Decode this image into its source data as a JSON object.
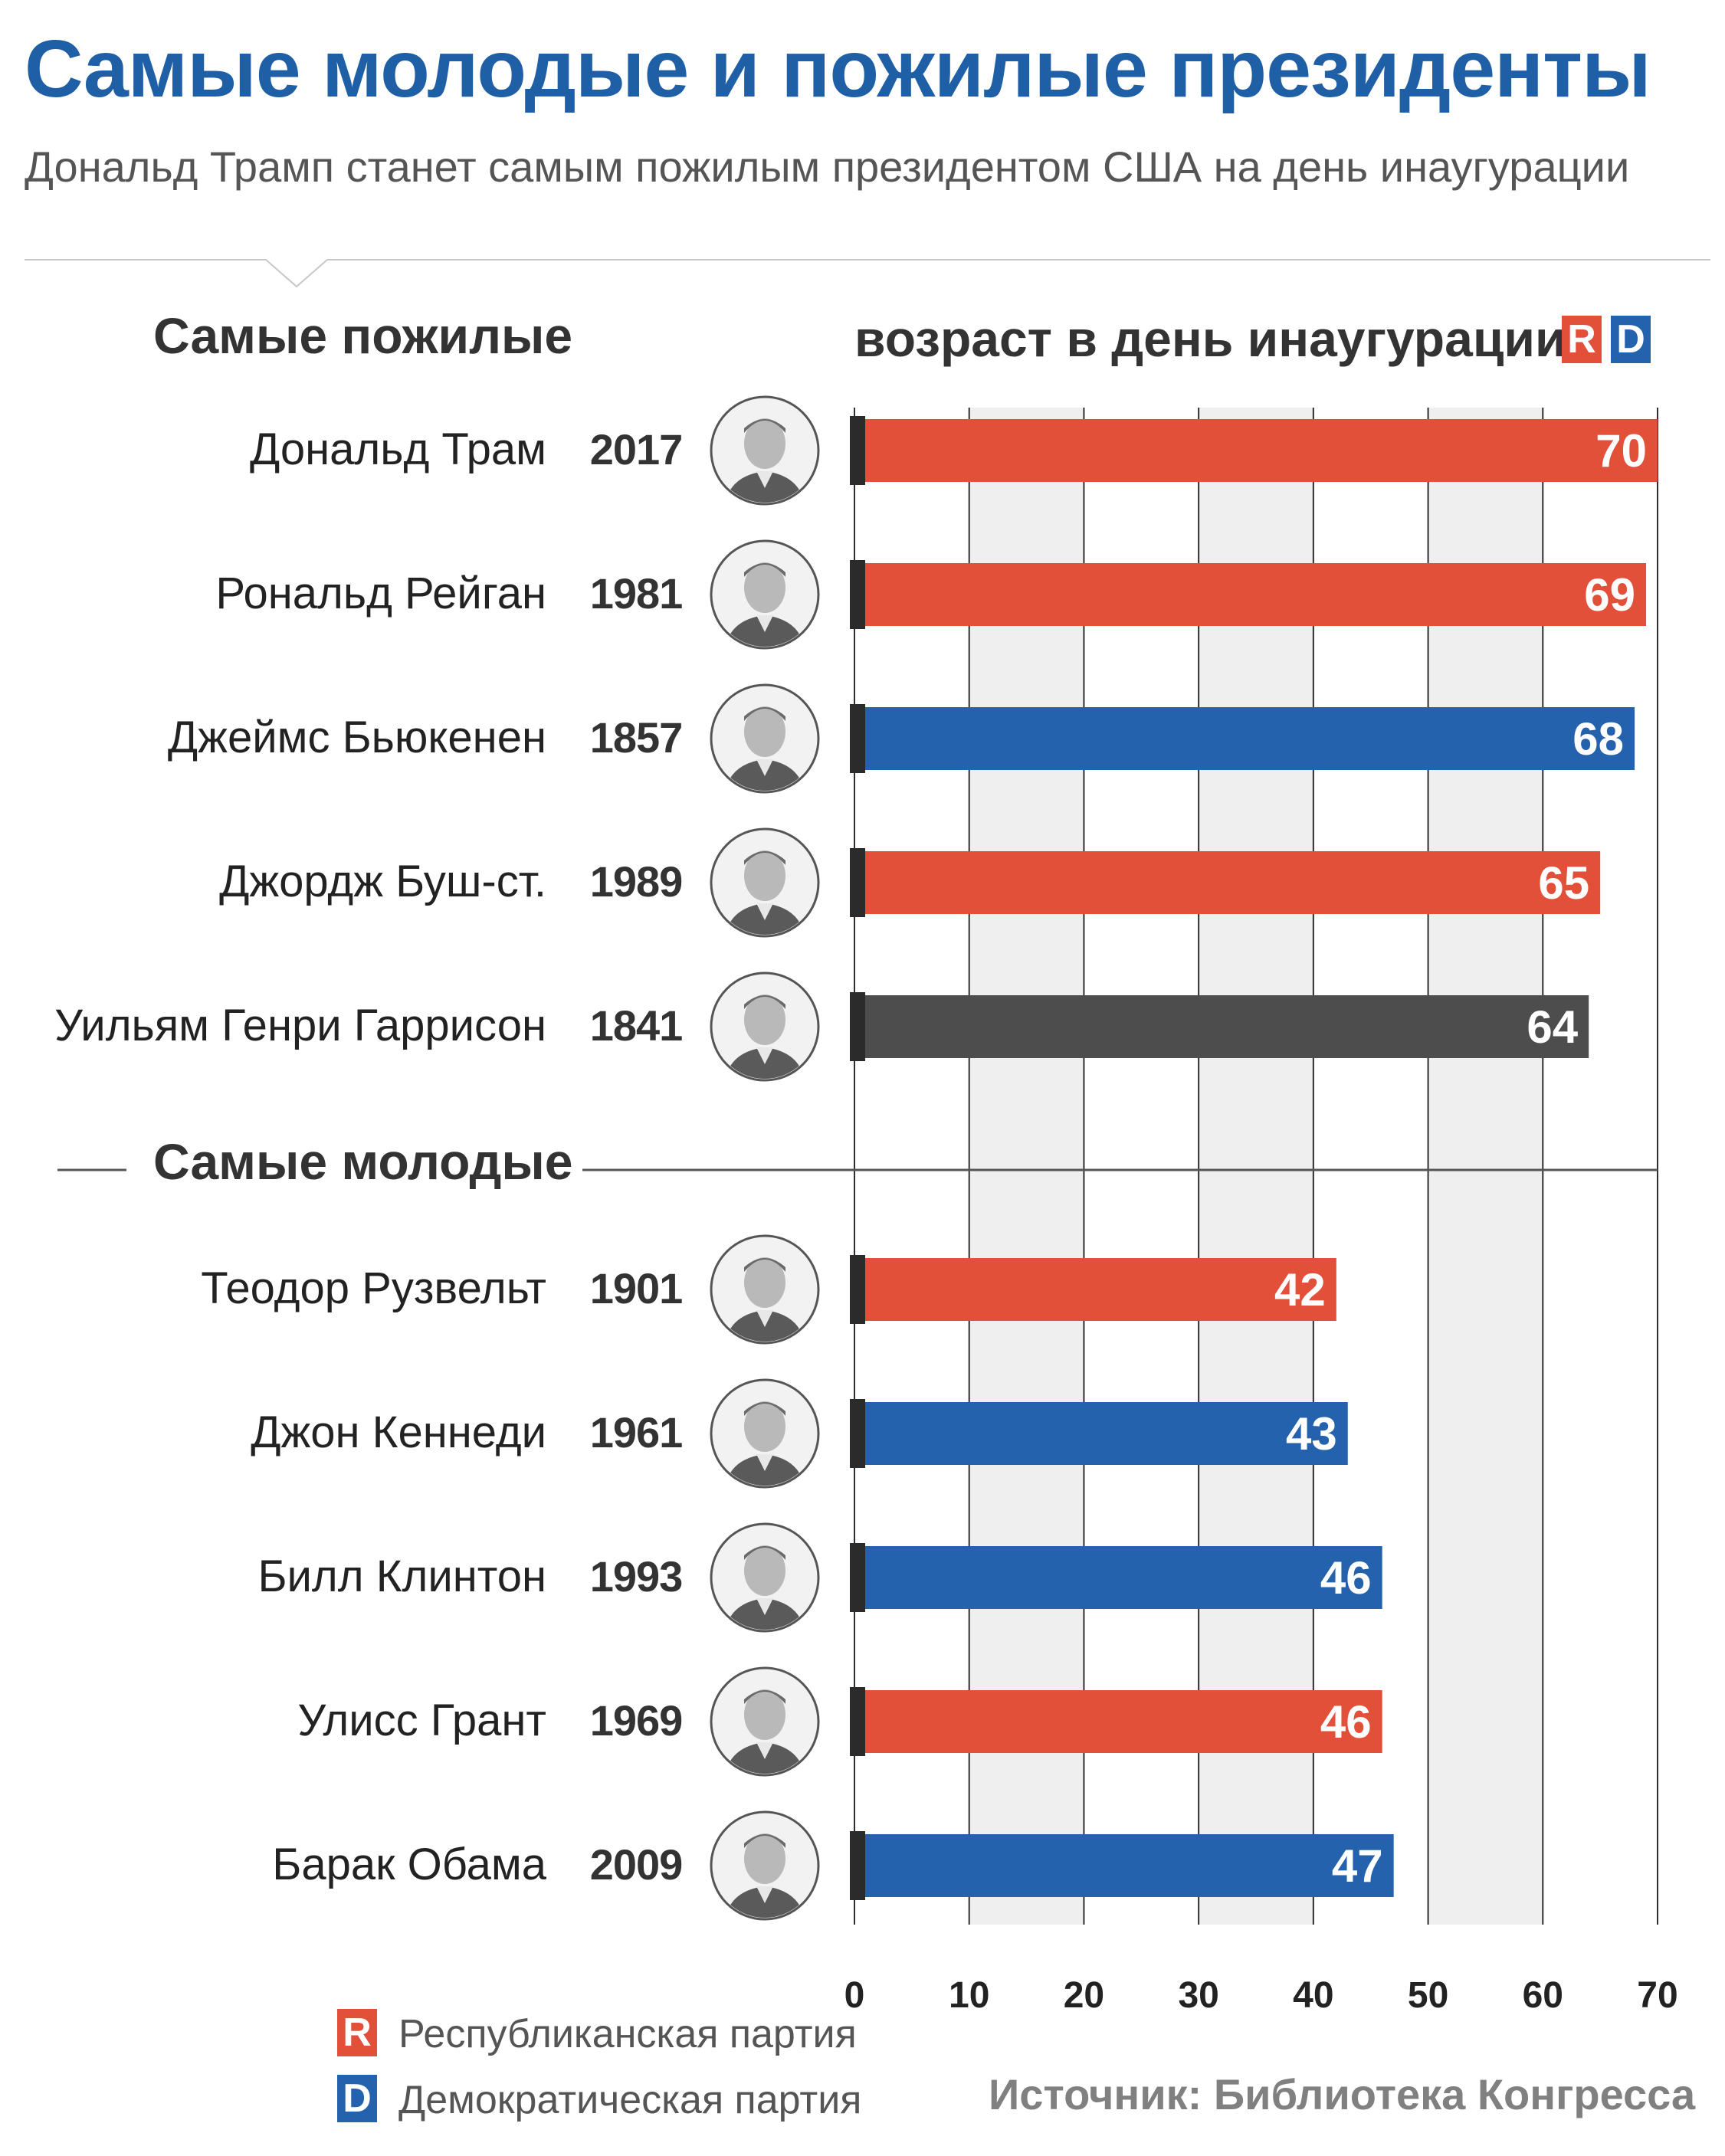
{
  "title": "Самые молодые и пожилые президенты",
  "subtitle": "Дональд Трамп станет самым пожилым президентом США на день инаугурации",
  "sections": {
    "oldest": "Самые пожилые",
    "youngest": "Самые молодые"
  },
  "axis_title": "возраст в день инаугурации",
  "party_chips": {
    "r": "R",
    "d": "D"
  },
  "colors": {
    "republican": "#e2503a",
    "democratic": "#2462ad",
    "other": "#4d4d4d",
    "title": "#1f5fa6",
    "grid_bg": "#efefef"
  },
  "legend": [
    {
      "code": "R",
      "label": "Республиканская партия",
      "party": "republican"
    },
    {
      "code": "D",
      "label": "Демократическая партия",
      "party": "democratic"
    }
  ],
  "source": "Источник: Библиотека Конгресса",
  "chart_data": {
    "type": "bar",
    "orientation": "horizontal",
    "xlim": [
      0,
      70
    ],
    "x_ticks": [
      0,
      10,
      20,
      30,
      40,
      50,
      60,
      70
    ],
    "grid": true,
    "legend_position": "bottom-left",
    "groups": [
      {
        "label": "Самые пожилые",
        "items": [
          {
            "name": "Дональд Трам",
            "year": "2017",
            "value": 70,
            "party": "republican"
          },
          {
            "name": "Рональд Рейган",
            "year": "1981",
            "value": 69,
            "party": "republican"
          },
          {
            "name": "Джеймс Бьюкенен",
            "year": "1857",
            "value": 68,
            "party": "democratic"
          },
          {
            "name": "Джордж Буш-ст.",
            "year": "1989",
            "value": 65,
            "party": "republican"
          },
          {
            "name": "Уильям Генри Гаррисон",
            "year": "1841",
            "value": 64,
            "party": "other"
          }
        ]
      },
      {
        "label": "Самые молодые",
        "items": [
          {
            "name": "Теодор Рузвельт",
            "year": "1901",
            "value": 42,
            "party": "republican"
          },
          {
            "name": "Джон Кеннеди",
            "year": "1961",
            "value": 43,
            "party": "democratic"
          },
          {
            "name": "Билл Клинтон",
            "year": "1993",
            "value": 46,
            "party": "democratic"
          },
          {
            "name": "Улисс Грант",
            "year": "1969",
            "value": 46,
            "party": "republican"
          },
          {
            "name": "Барак Обама",
            "year": "2009",
            "value": 47,
            "party": "democratic"
          }
        ]
      }
    ]
  }
}
